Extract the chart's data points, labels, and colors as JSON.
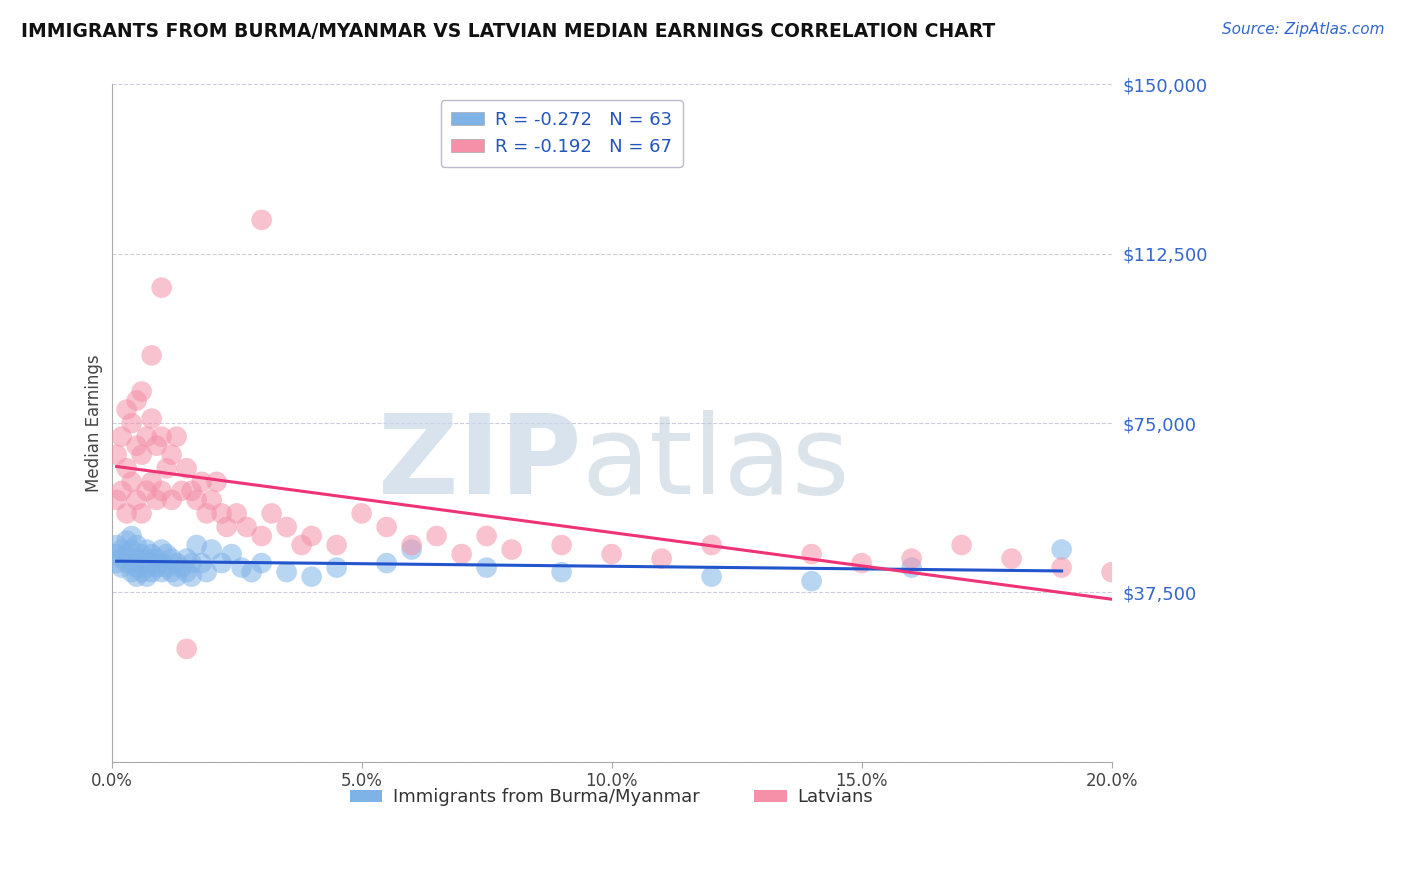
{
  "title": "IMMIGRANTS FROM BURMA/MYANMAR VS LATVIAN MEDIAN EARNINGS CORRELATION CHART",
  "source": "Source: ZipAtlas.com",
  "ylabel": "Median Earnings",
  "xlim": [
    0.0,
    0.2
  ],
  "ylim": [
    0,
    150000
  ],
  "yticks": [
    0,
    37500,
    75000,
    112500,
    150000
  ],
  "ytick_labels": [
    "",
    "$37,500",
    "$75,000",
    "$112,500",
    "$150,000"
  ],
  "xtick_labels": [
    "0.0%",
    "5.0%",
    "10.0%",
    "15.0%",
    "20.0%"
  ],
  "xticks": [
    0.0,
    0.05,
    0.1,
    0.15,
    0.2
  ],
  "blue_color": "#7fb3e8",
  "pink_color": "#f590a8",
  "blue_line_color": "#2255cc",
  "pink_line_color": "#ee3377",
  "legend_blue_label": "R = -0.272   N = 63",
  "legend_pink_label": "R = -0.192   N = 67",
  "legend_bottom_blue": "Immigrants from Burma/Myanmar",
  "legend_bottom_pink": "Latvians",
  "watermark_zip": "ZIP",
  "watermark_atlas": "atlas",
  "blue_R": -0.272,
  "blue_N": 63,
  "pink_R": -0.192,
  "pink_N": 67,
  "blue_x": [
    0.001,
    0.001,
    0.001,
    0.002,
    0.002,
    0.002,
    0.003,
    0.003,
    0.003,
    0.004,
    0.004,
    0.004,
    0.004,
    0.005,
    0.005,
    0.005,
    0.005,
    0.006,
    0.006,
    0.006,
    0.007,
    0.007,
    0.007,
    0.007,
    0.008,
    0.008,
    0.008,
    0.009,
    0.009,
    0.01,
    0.01,
    0.01,
    0.011,
    0.011,
    0.012,
    0.012,
    0.013,
    0.013,
    0.014,
    0.015,
    0.015,
    0.016,
    0.016,
    0.017,
    0.018,
    0.019,
    0.02,
    0.022,
    0.024,
    0.026,
    0.028,
    0.03,
    0.035,
    0.04,
    0.045,
    0.055,
    0.06,
    0.075,
    0.09,
    0.12,
    0.14,
    0.16,
    0.19
  ],
  "blue_y": [
    48000,
    46000,
    44000,
    47000,
    45000,
    43000,
    49000,
    46000,
    44000,
    50000,
    47000,
    44000,
    42000,
    48000,
    45000,
    43000,
    41000,
    46000,
    44000,
    42000,
    47000,
    45000,
    43000,
    41000,
    46000,
    44000,
    42000,
    45000,
    43000,
    47000,
    44000,
    42000,
    46000,
    43000,
    45000,
    42000,
    44000,
    41000,
    43000,
    45000,
    42000,
    44000,
    41000,
    48000,
    44000,
    42000,
    47000,
    44000,
    46000,
    43000,
    42000,
    44000,
    42000,
    41000,
    43000,
    44000,
    47000,
    43000,
    42000,
    41000,
    40000,
    43000,
    47000
  ],
  "pink_x": [
    0.001,
    0.001,
    0.002,
    0.002,
    0.003,
    0.003,
    0.003,
    0.004,
    0.004,
    0.005,
    0.005,
    0.005,
    0.006,
    0.006,
    0.006,
    0.007,
    0.007,
    0.008,
    0.008,
    0.009,
    0.009,
    0.01,
    0.01,
    0.011,
    0.012,
    0.012,
    0.013,
    0.014,
    0.015,
    0.016,
    0.017,
    0.018,
    0.019,
    0.02,
    0.021,
    0.022,
    0.023,
    0.025,
    0.027,
    0.03,
    0.032,
    0.035,
    0.038,
    0.04,
    0.045,
    0.05,
    0.055,
    0.06,
    0.065,
    0.07,
    0.075,
    0.08,
    0.09,
    0.1,
    0.11,
    0.12,
    0.14,
    0.15,
    0.16,
    0.17,
    0.18,
    0.19,
    0.2,
    0.03,
    0.008,
    0.01,
    0.015
  ],
  "pink_y": [
    68000,
    58000,
    72000,
    60000,
    78000,
    65000,
    55000,
    75000,
    62000,
    80000,
    70000,
    58000,
    82000,
    68000,
    55000,
    72000,
    60000,
    76000,
    62000,
    70000,
    58000,
    72000,
    60000,
    65000,
    68000,
    58000,
    72000,
    60000,
    65000,
    60000,
    58000,
    62000,
    55000,
    58000,
    62000,
    55000,
    52000,
    55000,
    52000,
    50000,
    55000,
    52000,
    48000,
    50000,
    48000,
    55000,
    52000,
    48000,
    50000,
    46000,
    50000,
    47000,
    48000,
    46000,
    45000,
    48000,
    46000,
    44000,
    45000,
    48000,
    45000,
    43000,
    42000,
    120000,
    90000,
    105000,
    25000
  ]
}
